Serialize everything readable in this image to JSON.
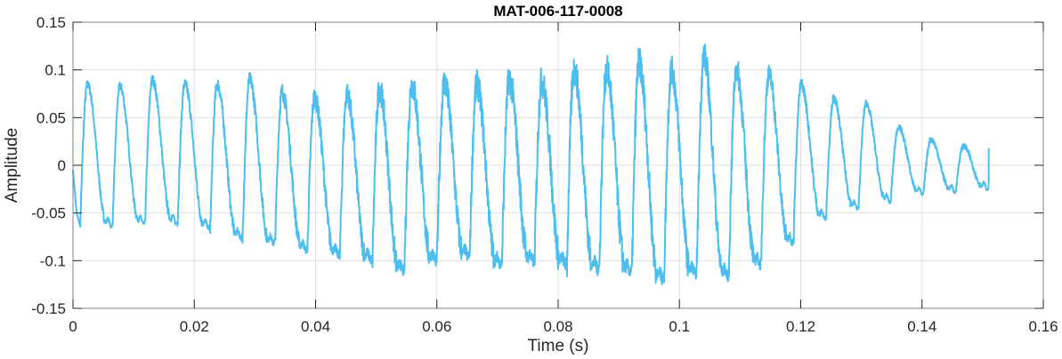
{
  "chart_data": {
    "type": "line",
    "title": "MAT-006-117-0008",
    "xlabel": "Time (s)",
    "ylabel": "Amplitude",
    "xlim": [
      0,
      0.16
    ],
    "ylim": [
      -0.15,
      0.15
    ],
    "xticks": [
      0,
      0.02,
      0.04,
      0.06,
      0.08,
      0.1,
      0.12,
      0.14,
      0.16
    ],
    "xtick_labels": [
      "0",
      "0.02",
      "0.04",
      "0.06",
      "0.08",
      "0.1",
      "0.12",
      "0.14",
      "0.16"
    ],
    "yticks": [
      -0.15,
      -0.1,
      -0.05,
      0,
      0.05,
      0.1,
      0.15
    ],
    "ytick_labels": [
      "-0.15",
      "-0.1",
      "-0.05",
      "0",
      "0.05",
      "0.1",
      "0.15"
    ],
    "grid": true,
    "line_color": "#4DBEEE",
    "signal_end_time": 0.151,
    "cycle_start_time": 0.0012,
    "cycle_period": 0.00535,
    "cycle_peaks": [
      0.085,
      0.083,
      0.09,
      0.085,
      0.085,
      0.09,
      0.077,
      0.071,
      0.075,
      0.08,
      0.085,
      0.087,
      0.085,
      0.09,
      0.088,
      0.1,
      0.1,
      0.108,
      0.1,
      0.115,
      0.1,
      0.095,
      0.085,
      0.07,
      0.065,
      0.04,
      0.027,
      0.02,
      0.02
    ],
    "cycle_troughs": [
      -0.06,
      -0.058,
      -0.057,
      -0.062,
      -0.072,
      -0.078,
      -0.085,
      -0.09,
      -0.095,
      -0.107,
      -0.096,
      -0.092,
      -0.1,
      -0.097,
      -0.1,
      -0.105,
      -0.108,
      -0.116,
      -0.11,
      -0.112,
      -0.1,
      -0.077,
      -0.052,
      -0.042,
      -0.035,
      -0.027,
      -0.025,
      -0.022,
      -0.02
    ],
    "cycle_noise": [
      0.3,
      0.3,
      0.35,
      0.4,
      0.45,
      0.5,
      0.6,
      0.7,
      0.8,
      0.9,
      1,
      1,
      1,
      1.1,
      1.1,
      1.1,
      1.1,
      1.1,
      1,
      1,
      0.9,
      0.7,
      0.4,
      0.3,
      0.25,
      0.2,
      0.2,
      0.2,
      0.2
    ]
  }
}
